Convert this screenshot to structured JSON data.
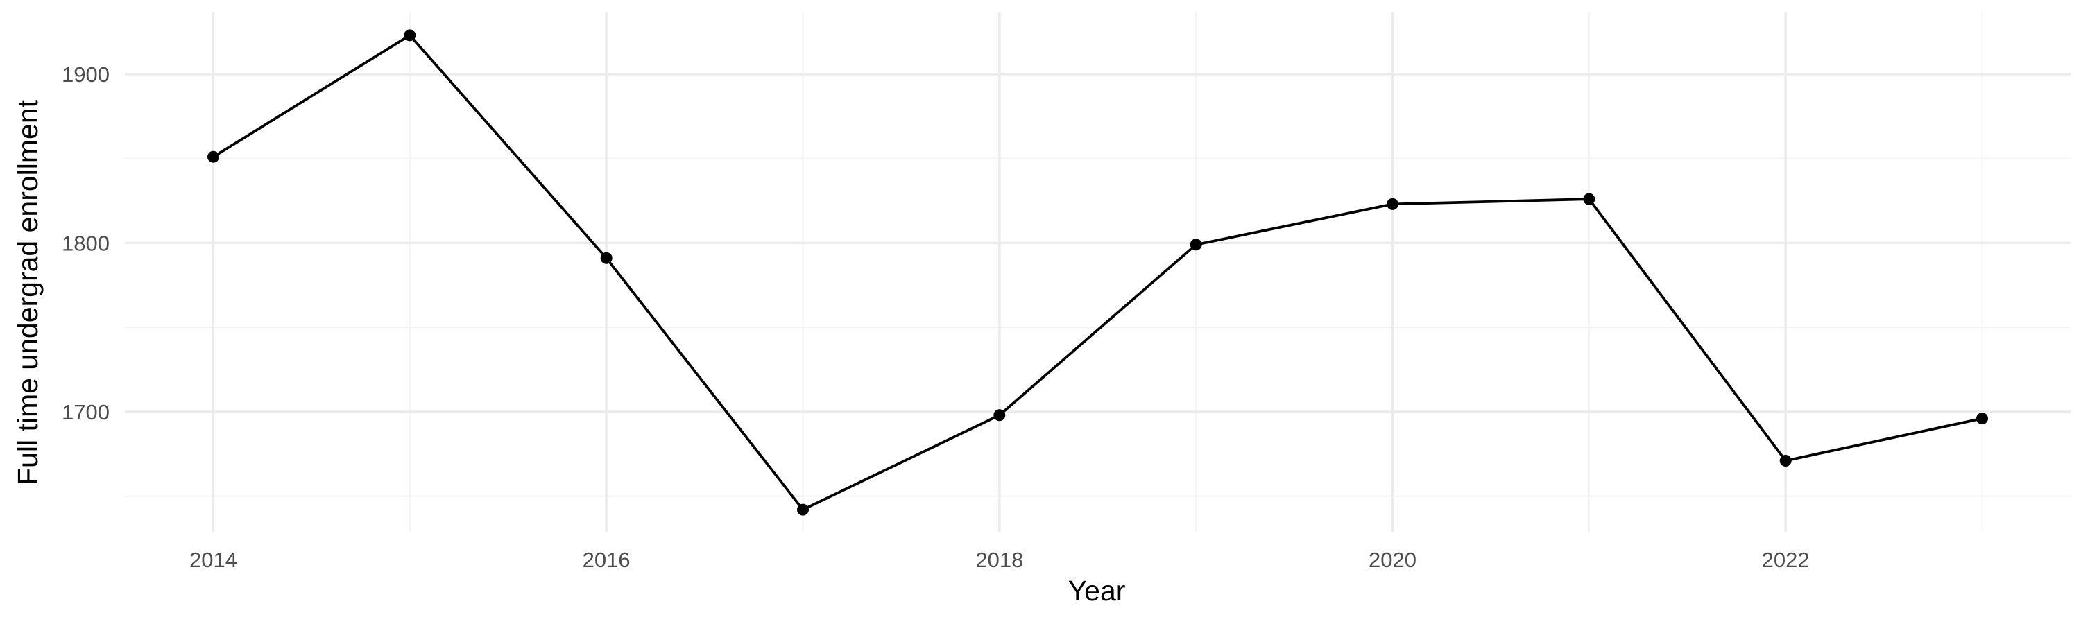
{
  "chart_data": {
    "type": "line",
    "xlabel": "Year",
    "ylabel": "Full time undergrad enrollment",
    "x": [
      2014,
      2015,
      2016,
      2017,
      2018,
      2019,
      2020,
      2021,
      2022,
      2023
    ],
    "series": [
      {
        "values": [
          1851,
          1923,
          1791,
          1642,
          1698,
          1799,
          1823,
          1826,
          1671,
          1696
        ]
      }
    ],
    "xlim": [
      2013.55,
      2023.45
    ],
    "ylim": [
      1628.5,
      1936.5
    ],
    "x_ticks": [
      2014,
      2016,
      2018,
      2020,
      2022
    ],
    "x_tick_labels": [
      "2014",
      "2016",
      "2018",
      "2020",
      "2022"
    ],
    "x_minor_ticks": [
      2015,
      2017,
      2019,
      2021,
      2023
    ],
    "y_ticks": [
      1700,
      1800,
      1900
    ],
    "y_tick_labels": [
      "1700",
      "1800",
      "1900"
    ],
    "y_minor_ticks": [
      1650,
      1750,
      1850
    ],
    "grid": true,
    "line_color": "#000000",
    "point_color": "#000000"
  }
}
